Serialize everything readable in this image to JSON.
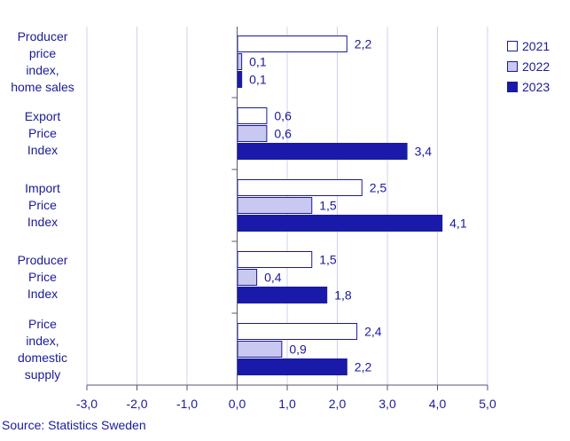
{
  "chart_data": {
    "type": "bar",
    "orientation": "horizontal",
    "categories": [
      "Producer\nprice\nindex,\nhome sales",
      "Export\nPrice\nIndex",
      "Import\nPrice\nIndex",
      "Producer\nPrice\nIndex",
      "Price\nindex,\ndomestic\nsupply"
    ],
    "series": [
      {
        "name": "2021",
        "values": [
          2.2,
          0.6,
          2.5,
          1.5,
          2.4
        ],
        "labels": [
          "2,2",
          "0,6",
          "2,5",
          "1,5",
          "2,4"
        ],
        "fill": "#ffffff",
        "stroke": "#1a1a9a"
      },
      {
        "name": "2022",
        "values": [
          0.1,
          0.6,
          1.5,
          0.4,
          0.9
        ],
        "labels": [
          "0,1",
          "0,6",
          "1,5",
          "0,4",
          "0,9"
        ],
        "fill": "#c8c8f0",
        "stroke": "#1a1a9a"
      },
      {
        "name": "2023",
        "values": [
          0.1,
          3.4,
          4.1,
          1.8,
          2.2
        ],
        "labels": [
          "0,1",
          "3,4",
          "4,1",
          "1,8",
          "2,2"
        ],
        "fill": "#1a1aaa",
        "stroke": "#1a1a9a"
      }
    ],
    "xlim": [
      -3.0,
      5.0
    ],
    "xticks": [
      -3,
      -2,
      -1,
      0,
      1,
      2,
      3,
      4,
      5
    ],
    "xtick_labels": [
      "-3,0",
      "-2,0",
      "-1,0",
      "0,0",
      "1,0",
      "2,0",
      "3,0",
      "4,0",
      "5,0"
    ],
    "grid": true,
    "legend_position": "top-right",
    "title": "",
    "xlabel": "",
    "ylabel": ""
  },
  "source": "Source: Statistics Sweden",
  "colors": {
    "text": "#1a1a9a",
    "grid": "#d0d0ee",
    "axis": "#555577"
  }
}
